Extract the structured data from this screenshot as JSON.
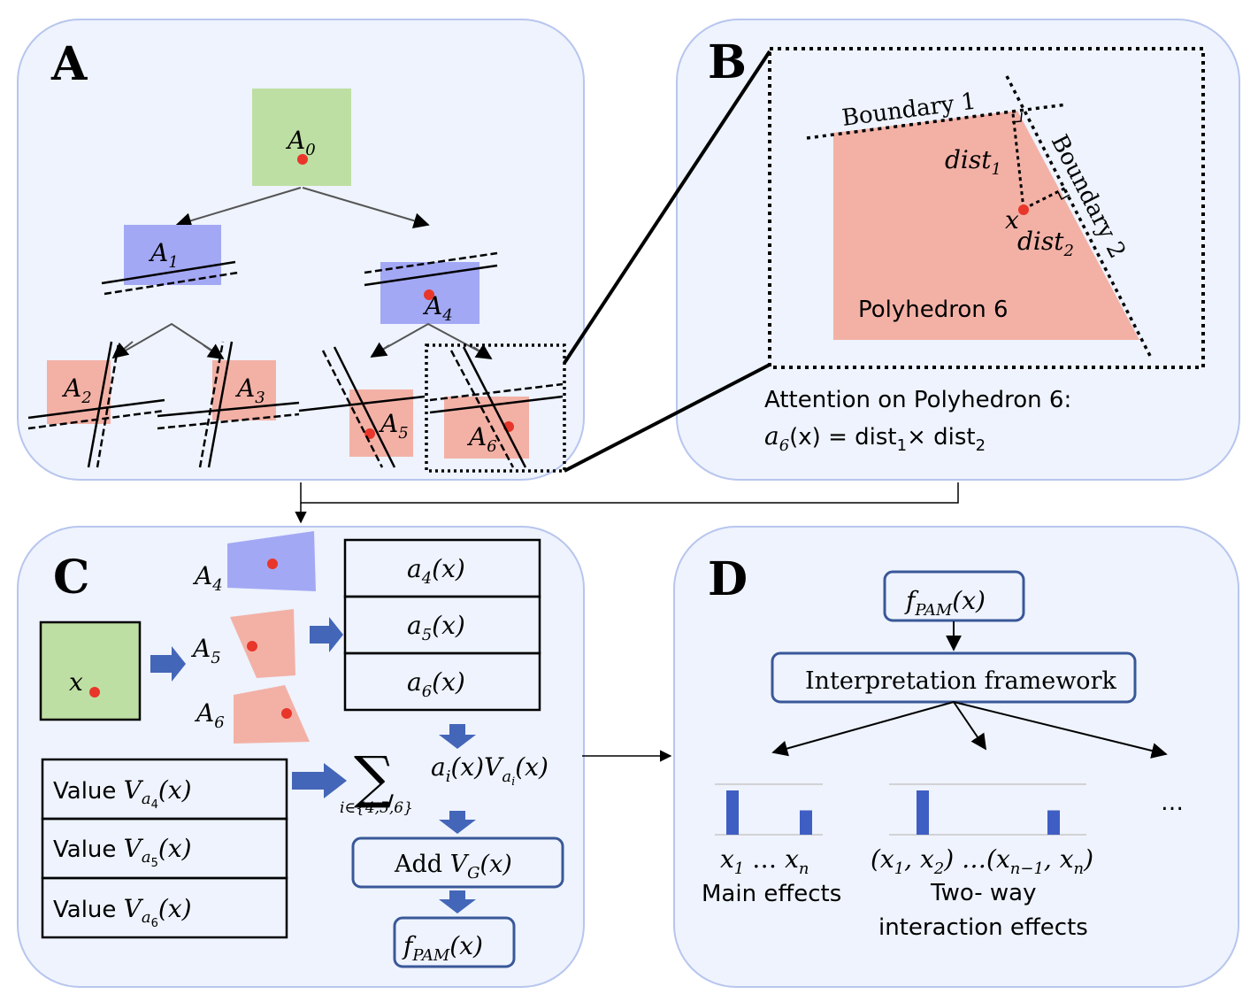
{
  "panels": {
    "a": {
      "letter": "A"
    },
    "b": {
      "letter": "B"
    },
    "c": {
      "letter": "C"
    },
    "d": {
      "letter": "D"
    }
  },
  "colors": {
    "panel_bg": "#eef3fd",
    "panel_border": "#b8c6ee",
    "green": "#bedfa3",
    "blue": "#a3a8f4",
    "red": "#f3b1a6",
    "point": "#e8362a",
    "arrow_blue": "#4466b8",
    "box_border": "#3a5899",
    "bar": "#3f5ec4"
  },
  "tree": {
    "nodes": [
      {
        "base": "A",
        "sub": "0"
      },
      {
        "base": "A",
        "sub": "1"
      },
      {
        "base": "A",
        "sub": "4"
      },
      {
        "base": "A",
        "sub": "2"
      },
      {
        "base": "A",
        "sub": "3"
      },
      {
        "base": "A",
        "sub": "5"
      },
      {
        "base": "A",
        "sub": "6"
      }
    ]
  },
  "polyhedron": {
    "boundary1": "Boundary 1",
    "boundary2": "Boundary 2",
    "dist1_base": "dist",
    "dist1_sub": "1",
    "dist2_base": "dist",
    "dist2_sub": "2",
    "x_label": "x",
    "name": "Polyhedron 6",
    "caption_line1": "Attention on Polyhedron 6:",
    "formula_a": "a",
    "formula_a_sub": "6",
    "formula_rest": "(x) = dist",
    "formula_s1": "1",
    "formula_times": "× dist",
    "formula_s2": "2"
  },
  "computation": {
    "input_x": "x",
    "regions": [
      {
        "base": "A",
        "sub": "4"
      },
      {
        "base": "A",
        "sub": "5"
      },
      {
        "base": "A",
        "sub": "6"
      }
    ],
    "attention": [
      {
        "base": "a",
        "sub": "4",
        "arg": "(x)"
      },
      {
        "base": "a",
        "sub": "5",
        "arg": "(x)"
      },
      {
        "base": "a",
        "sub": "6",
        "arg": "(x)"
      }
    ],
    "values": [
      {
        "prefix": "Value ",
        "base": "V",
        "sub": "a",
        "subsub": "4",
        "arg": "(x)"
      },
      {
        "prefix": "Value ",
        "base": "V",
        "sub": "a",
        "subsub": "5",
        "arg": "(x)"
      },
      {
        "prefix": "Value ",
        "base": "V",
        "sub": "a",
        "subsub": "6",
        "arg": "(x)"
      }
    ],
    "sum_symbol": "∑",
    "sum_index": "i∈{4,5,6}",
    "sum_term_a": "a",
    "sum_term_i": "i",
    "sum_term_x": "(x)V",
    "sum_term_ai": "a",
    "sum_term_ii": "i",
    "sum_term_end": "(x)",
    "add_prefix": "Add ",
    "add_base": "V",
    "add_sub": "G",
    "add_arg": "(x)",
    "out_base": "f",
    "out_sub": "PAM",
    "out_arg": "(x)"
  },
  "interpretation": {
    "top_base": "f",
    "top_sub": "PAM",
    "top_arg": "(x)",
    "framework": "Interpretation framework",
    "main_x1": "x",
    "main_x1_sub": "1",
    "main_dots": " …  ",
    "main_xn": "x",
    "main_xn_sub": "n",
    "main_label": "Main effects",
    "two_left": "(x",
    "two_s1": "1",
    "two_comma": ", x",
    "two_s2": "2",
    "two_mid": ") …(x",
    "two_sn1": "n−1",
    "two_comma2": ", x",
    "two_sn": "n",
    "two_end": ")",
    "two_label1": "Two- way",
    "two_label2": "interaction effects",
    "ellipsis": "…",
    "main_bars": [
      1.0,
      0.55
    ],
    "two_bars": [
      1.0,
      0.55
    ]
  }
}
